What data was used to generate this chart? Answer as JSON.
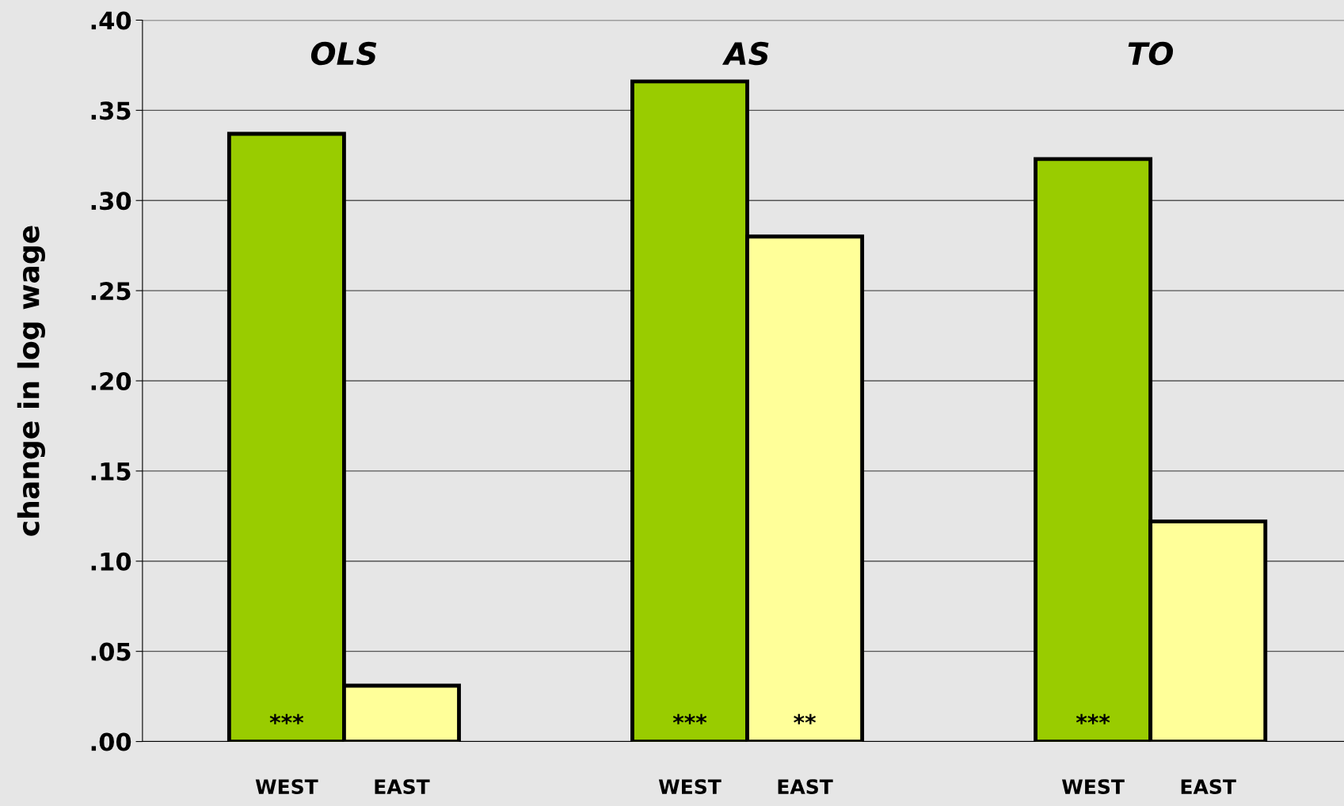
{
  "chart_data": {
    "type": "bar",
    "ylabel": "change in log wage",
    "categories": [
      "OLS",
      "AS",
      "TO"
    ],
    "series": [
      {
        "name": "WEST",
        "color": "#99cc00",
        "values": [
          0.337,
          0.366,
          0.323
        ],
        "value_labels": [
          "***",
          "***",
          "***"
        ]
      },
      {
        "name": "EAST",
        "color": "#ffff99",
        "values": [
          0.031,
          0.28,
          0.122
        ],
        "value_labels": [
          null,
          "**",
          null
        ]
      }
    ],
    "ylim": [
      0,
      0.4
    ],
    "yticks": [
      {
        "value": 0,
        "label": ".00"
      },
      {
        "value": 0.05,
        "label": ".05"
      },
      {
        "value": 0.1,
        "label": ".10"
      },
      {
        "value": 0.15,
        "label": ".15"
      },
      {
        "value": 0.2,
        "label": ".20"
      },
      {
        "value": 0.25,
        "label": ".25"
      },
      {
        "value": 0.3,
        "label": ".30"
      },
      {
        "value": 0.35,
        "label": ".35"
      },
      {
        "value": 0.4,
        "label": ".40"
      }
    ],
    "grid": "y",
    "legend": false
  }
}
